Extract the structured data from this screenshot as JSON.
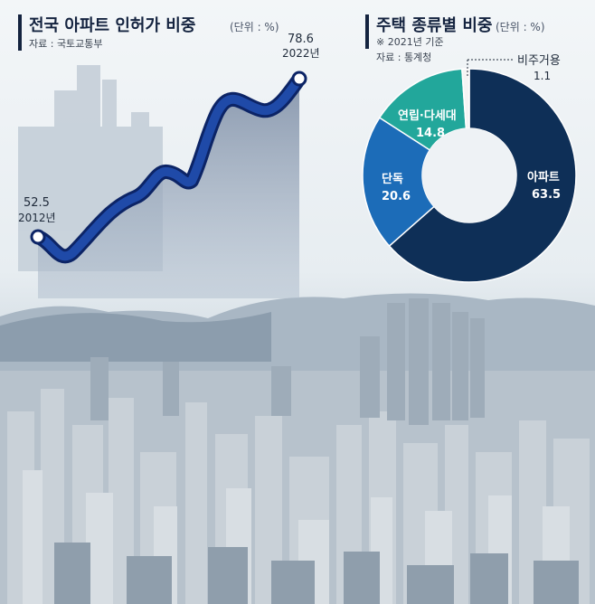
{
  "left": {
    "title": "전국 아파트 인허가 비중",
    "unit": "(단위 : %)",
    "source": "자료 : 국토교통부"
  },
  "right": {
    "title": "주택 종류별 비중",
    "unit": "(단위 : %)",
    "note": "※ 2021년 기준",
    "source": "자료 : 통계청"
  },
  "chart_data": [
    {
      "type": "line",
      "title": "전국 아파트 인허가 비중",
      "unit": "%",
      "x": [
        "2012년",
        "2022년"
      ],
      "values": [
        52.5,
        78.6
      ],
      "labels": [
        {
          "value": "52.5",
          "year": "2012년"
        },
        {
          "value": "78.6",
          "year": "2022년"
        }
      ],
      "color": "#1b3d8f",
      "grid": false,
      "legend": "none"
    },
    {
      "type": "pie",
      "donut": true,
      "title": "주택 종류별 비중",
      "unit": "%",
      "slices": [
        {
          "name": "아파트",
          "value": 63.5,
          "display": "63.5",
          "color": "#0e2f57"
        },
        {
          "name": "단독",
          "value": 20.6,
          "display": "20.6",
          "color": "#1c6cb8"
        },
        {
          "name": "연립·다세대",
          "value": 14.8,
          "display": "14.8",
          "color": "#22a79b"
        },
        {
          "name": "비주거용",
          "value": 1.1,
          "display": "1.1",
          "color": "#f4f4f4"
        }
      ],
      "legend": "none"
    }
  ]
}
